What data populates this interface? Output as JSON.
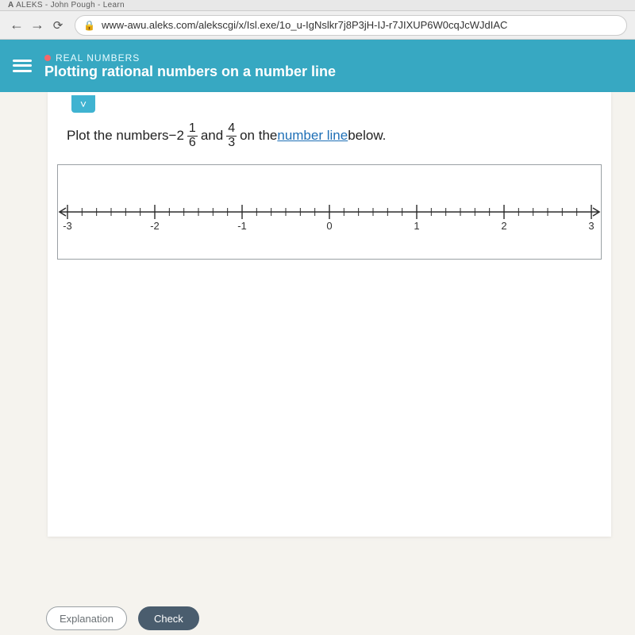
{
  "browser": {
    "tab_title": "ALEKS - John Pough - Learn",
    "back_glyph": "←",
    "forward_glyph": "→",
    "reload_glyph": "⟳",
    "lock_glyph": "🔒",
    "url": "www-awu.aleks.com/alekscgi/x/Isl.exe/1o_u-IgNslkr7j8P3jH-IJ-r7JIXUP6W0cqJcWJdIAC"
  },
  "header": {
    "category": "REAL NUMBERS",
    "topic": "Plotting rational numbers on a number line"
  },
  "chevron_glyph": "˅",
  "question": {
    "prefix": "Plot the numbers ",
    "first_whole": "−2",
    "first_num": "1",
    "first_den": "6",
    "between": " and ",
    "second_num": "4",
    "second_den": "3",
    "mid": " on the ",
    "link_text": "number line",
    "suffix": " below."
  },
  "numberline": {
    "min": -3,
    "max": 3,
    "major_ticks": [
      -3,
      -2,
      -1,
      0,
      1,
      2,
      3
    ],
    "minor_subdivisions": 6,
    "axis_color": "#2b2b2b",
    "major_tick_height": 9,
    "minor_tick_height": 5,
    "label_font_size": 13,
    "label_color": "#333333",
    "background": "#ffffff"
  },
  "buttons": {
    "explanation": "Explanation",
    "check": "Check"
  }
}
